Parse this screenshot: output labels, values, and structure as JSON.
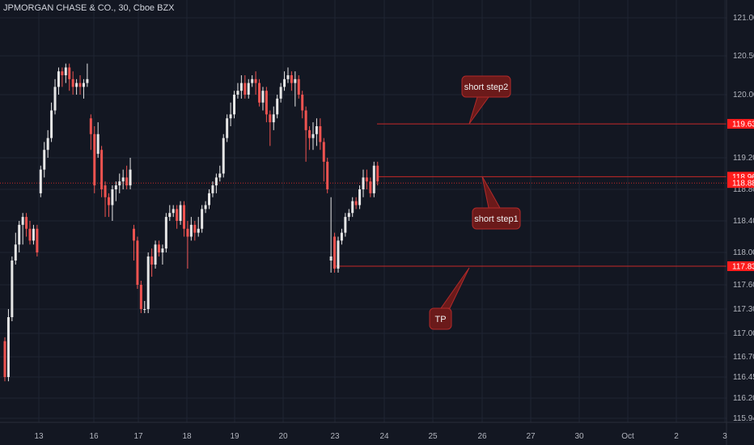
{
  "header": {
    "title": "JPMORGAN CHASE & CO., 30, Cboe BZX"
  },
  "colors": {
    "background": "#131722",
    "grid": "#1f2433",
    "up": "#e6e6e6",
    "down": "#ef5350",
    "line": "#c62828",
    "label_bg": "#ff1c1c",
    "callout_bg": "#6b1a1a",
    "callout_border": "#b02a2a",
    "axis_text": "#b2b5be"
  },
  "chart_data": {
    "type": "candlestick",
    "title": "JPMORGAN CHASE & CO., 30, Cboe BZX",
    "ylim": [
      115.9,
      121.15
    ],
    "y_ticks": [
      "121.00",
      "120.50",
      "120.00",
      "119.20",
      "118.80",
      "118.40",
      "118.00",
      "117.60",
      "117.30",
      "117.00",
      "116.70",
      "116.45",
      "116.20",
      "115.94"
    ],
    "y_tick_values": [
      121.0,
      120.5,
      120.0,
      119.2,
      118.8,
      118.4,
      118.0,
      117.6,
      117.3,
      117.0,
      116.7,
      116.45,
      116.2,
      115.94
    ],
    "x_ticks": [
      "13",
      "16",
      "17",
      "18",
      "19",
      "20",
      "23",
      "24",
      "25",
      "26",
      "27",
      "30",
      "Oct",
      "2",
      "3"
    ],
    "price_labels": [
      {
        "text": "119.63",
        "value": 119.63
      },
      {
        "text": "118.96",
        "value": 118.96
      },
      {
        "text": "118.88",
        "value": 118.88
      },
      {
        "text": "117.83",
        "value": 117.83
      }
    ],
    "levels": [
      {
        "name": "short step2",
        "value": 119.63
      },
      {
        "name": "short step1",
        "value": 118.96
      },
      {
        "name": "TP",
        "value": 117.83
      }
    ],
    "current_price": 118.88,
    "callouts": [
      {
        "text": "short step2",
        "target_value": 119.63
      },
      {
        "text": "short step1",
        "target_value": 118.96
      },
      {
        "text": "TP",
        "target_value": 117.83
      }
    ],
    "candles": [
      [
        116.9,
        116.45,
        116.95,
        116.4
      ],
      [
        116.45,
        117.2,
        117.3,
        116.4
      ],
      [
        117.2,
        117.9,
        117.95,
        117.15
      ],
      [
        117.9,
        118.1,
        118.25,
        117.85
      ],
      [
        118.1,
        118.35,
        118.4,
        118.0
      ],
      [
        118.35,
        118.45,
        118.5,
        118.1
      ],
      [
        118.45,
        118.3,
        118.5,
        118.2
      ],
      [
        118.3,
        118.15,
        118.4,
        118.1
      ],
      [
        118.15,
        118.3,
        118.35,
        118.1
      ],
      [
        118.3,
        118.0,
        118.35,
        117.95
      ],
      [
        118.75,
        119.05,
        119.1,
        118.7
      ],
      [
        119.05,
        119.3,
        119.4,
        118.95
      ],
      [
        119.3,
        119.45,
        119.55,
        119.2
      ],
      [
        119.45,
        119.8,
        119.9,
        119.4
      ],
      [
        119.8,
        120.1,
        120.2,
        119.75
      ],
      [
        120.1,
        120.3,
        120.35,
        120.0
      ],
      [
        120.3,
        120.25,
        120.35,
        120.1
      ],
      [
        120.25,
        120.35,
        120.4,
        120.15
      ],
      [
        120.35,
        120.2,
        120.4,
        120.05
      ],
      [
        120.2,
        120.1,
        120.3,
        120.0
      ],
      [
        120.1,
        120.15,
        120.2,
        120.0
      ],
      [
        120.15,
        120.1,
        120.25,
        120.0
      ],
      [
        120.1,
        120.15,
        120.2,
        119.95
      ],
      [
        120.15,
        120.2,
        120.4,
        120.1
      ],
      [
        119.7,
        119.5,
        119.75,
        119.3
      ],
      [
        119.5,
        118.85,
        119.6,
        118.75
      ],
      [
        119.25,
        119.5,
        119.65,
        119.2
      ],
      [
        119.3,
        118.8,
        119.35,
        118.7
      ],
      [
        118.85,
        118.7,
        118.9,
        118.45
      ],
      [
        118.7,
        118.6,
        118.75,
        118.45
      ],
      [
        118.6,
        118.8,
        118.85,
        118.4
      ],
      [
        118.8,
        118.85,
        118.9,
        118.65
      ],
      [
        118.85,
        118.9,
        119.0,
        118.75
      ],
      [
        118.9,
        118.95,
        119.05,
        118.8
      ],
      [
        118.95,
        118.85,
        119.1,
        118.8
      ],
      [
        118.85,
        119.05,
        119.2,
        118.8
      ],
      [
        118.3,
        118.15,
        118.35,
        117.9
      ],
      [
        118.15,
        117.6,
        118.2,
        117.55
      ],
      [
        117.6,
        117.3,
        117.65,
        117.25
      ],
      [
        117.3,
        117.3,
        117.4,
        117.25
      ],
      [
        117.3,
        117.95,
        118.0,
        117.25
      ],
      [
        117.95,
        117.85,
        118.05,
        117.7
      ],
      [
        117.85,
        118.1,
        118.15,
        117.8
      ],
      [
        118.1,
        118.0,
        118.15,
        117.95
      ],
      [
        118.0,
        118.05,
        118.1,
        117.85
      ],
      [
        118.05,
        118.45,
        118.5,
        118.0
      ],
      [
        118.45,
        118.5,
        118.6,
        118.4
      ],
      [
        118.5,
        118.55,
        118.6,
        118.45
      ],
      [
        118.55,
        118.4,
        118.6,
        118.3
      ],
      [
        118.4,
        118.6,
        118.65,
        118.35
      ],
      [
        118.6,
        118.3,
        118.65,
        118.2
      ],
      [
        118.3,
        118.2,
        118.4,
        117.8
      ],
      [
        118.2,
        118.35,
        118.45,
        118.15
      ],
      [
        118.35,
        118.25,
        118.4,
        118.15
      ],
      [
        118.25,
        118.3,
        118.45,
        118.2
      ],
      [
        118.3,
        118.55,
        118.6,
        118.25
      ],
      [
        118.55,
        118.6,
        118.65,
        118.5
      ],
      [
        118.6,
        118.75,
        118.8,
        118.55
      ],
      [
        118.75,
        118.85,
        118.9,
        118.7
      ],
      [
        118.85,
        118.95,
        119.0,
        118.75
      ],
      [
        118.95,
        119.0,
        119.1,
        118.9
      ],
      [
        119.0,
        119.45,
        119.5,
        118.95
      ],
      [
        119.45,
        119.7,
        119.75,
        119.4
      ],
      [
        119.7,
        119.75,
        119.9,
        119.6
      ],
      [
        119.75,
        120.0,
        120.05,
        119.7
      ],
      [
        120.0,
        120.05,
        120.15,
        119.95
      ],
      [
        120.05,
        120.15,
        120.25,
        119.95
      ],
      [
        120.15,
        120.0,
        120.25,
        119.95
      ],
      [
        120.0,
        120.15,
        120.2,
        119.95
      ],
      [
        120.15,
        120.2,
        120.25,
        120.1
      ],
      [
        120.2,
        120.15,
        120.3,
        120.0
      ],
      [
        120.15,
        119.9,
        120.2,
        119.85
      ],
      [
        119.9,
        120.05,
        120.1,
        119.8
      ],
      [
        120.05,
        119.75,
        120.1,
        119.65
      ],
      [
        119.75,
        119.65,
        119.8,
        119.35
      ],
      [
        119.65,
        119.75,
        119.85,
        119.55
      ],
      [
        119.75,
        119.95,
        120.0,
        119.7
      ],
      [
        119.95,
        120.1,
        120.15,
        119.9
      ],
      [
        120.1,
        120.2,
        120.3,
        120.05
      ],
      [
        120.2,
        120.25,
        120.35,
        120.15
      ],
      [
        120.25,
        120.15,
        120.3,
        120.05
      ],
      [
        120.15,
        120.2,
        120.3,
        119.85
      ],
      [
        120.2,
        120.0,
        120.25,
        119.95
      ],
      [
        120.0,
        119.8,
        120.05,
        119.7
      ],
      [
        119.8,
        119.55,
        119.85,
        119.15
      ],
      [
        119.55,
        119.45,
        119.6,
        119.3
      ],
      [
        119.45,
        119.5,
        119.65,
        119.3
      ],
      [
        119.5,
        119.6,
        119.7,
        119.35
      ],
      [
        119.6,
        119.4,
        119.7,
        119.3
      ],
      [
        119.4,
        119.15,
        119.45,
        118.9
      ],
      [
        119.15,
        118.8,
        119.2,
        118.75
      ],
      [
        117.9,
        117.95,
        118.7,
        117.75
      ],
      [
        118.2,
        117.8,
        118.25,
        117.75
      ],
      [
        117.8,
        118.15,
        118.2,
        117.75
      ],
      [
        118.15,
        118.25,
        118.3,
        118.1
      ],
      [
        118.25,
        118.45,
        118.5,
        118.2
      ],
      [
        118.45,
        118.5,
        118.55,
        118.4
      ],
      [
        118.5,
        118.65,
        118.7,
        118.45
      ],
      [
        118.65,
        118.6,
        118.7,
        118.55
      ],
      [
        118.6,
        118.8,
        118.85,
        118.55
      ],
      [
        118.8,
        118.95,
        119.05,
        118.7
      ],
      [
        118.95,
        118.9,
        119.05,
        118.8
      ],
      [
        118.9,
        118.75,
        118.95,
        118.7
      ],
      [
        118.75,
        119.1,
        119.15,
        118.7
      ],
      [
        119.1,
        118.9,
        119.15,
        118.85
      ]
    ]
  }
}
